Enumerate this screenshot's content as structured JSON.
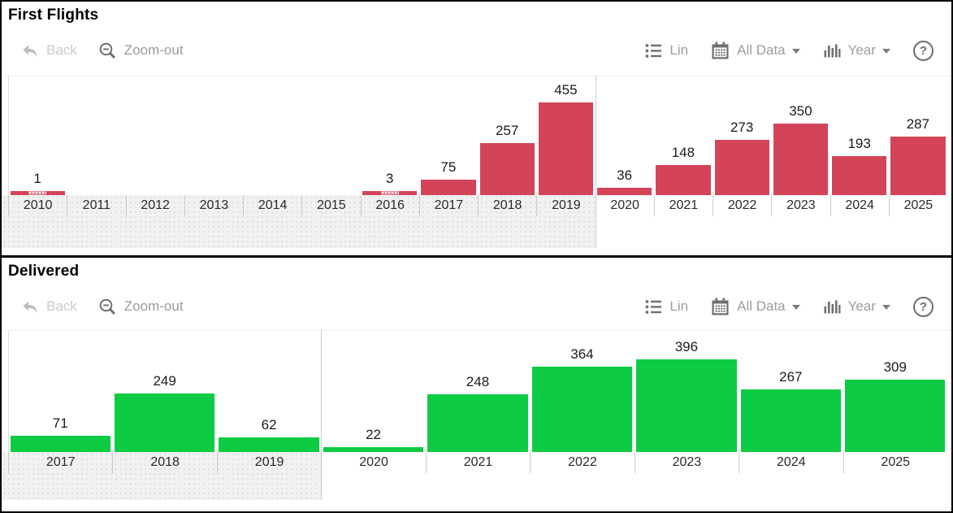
{
  "toolbar": {
    "back": "Back",
    "zoom_out": "Zoom-out",
    "lin": "Lin",
    "all_data": "All Data",
    "year": "Year",
    "help": "?"
  },
  "panels": [
    {
      "title": "First Flights"
    },
    {
      "title": "Delivered"
    }
  ],
  "chart_data": [
    {
      "type": "bar",
      "title": "First Flights",
      "categories": [
        "2010",
        "2011",
        "2012",
        "2013",
        "2014",
        "2015",
        "2016",
        "2017",
        "2018",
        "2019",
        "2020",
        "2021",
        "2022",
        "2023",
        "2024",
        "2025"
      ],
      "values": [
        1,
        0,
        0,
        0,
        0,
        0,
        3,
        75,
        257,
        455,
        36,
        148,
        273,
        350,
        193,
        287
      ],
      "bar_color": "#d34458",
      "value_label_color": "#1b1b1b",
      "selected_range": {
        "from": "2010",
        "to": "2019"
      },
      "xlabel": "",
      "ylabel": "",
      "ylim": [
        0,
        500
      ],
      "grid": false,
      "legend": false
    },
    {
      "type": "bar",
      "title": "Delivered",
      "categories": [
        "2017",
        "2018",
        "2019",
        "2020",
        "2021",
        "2022",
        "2023",
        "2024",
        "2025"
      ],
      "values": [
        71,
        249,
        62,
        22,
        248,
        364,
        396,
        267,
        309
      ],
      "bar_color": "#0dcc44",
      "value_label_color": "#1b1b1b",
      "selected_range": {
        "from": "2017",
        "to": "2019"
      },
      "xlabel": "",
      "ylabel": "",
      "ylim": [
        0,
        440
      ],
      "grid": false,
      "legend": false
    }
  ]
}
